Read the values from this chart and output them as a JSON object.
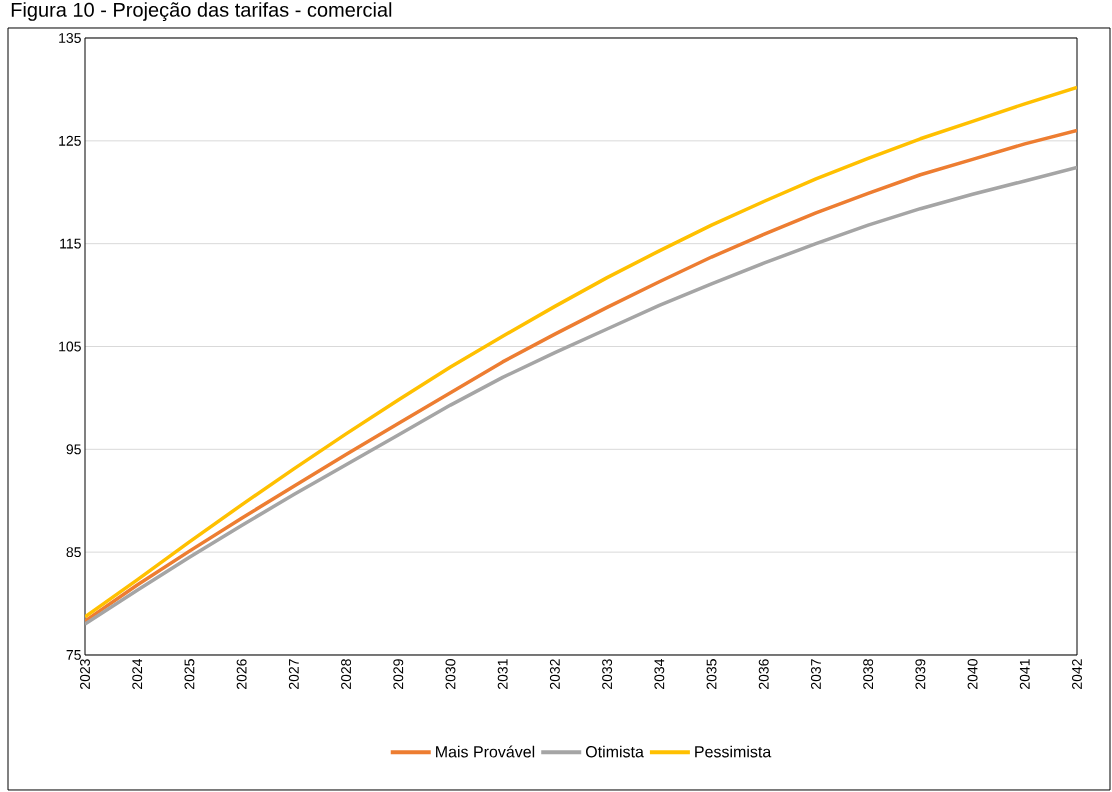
{
  "chart_data": {
    "type": "line",
    "title": "Figura 10 - Projeção das tarifas - comercial",
    "categories": [
      "2023",
      "2024",
      "2025",
      "2026",
      "2027",
      "2028",
      "2029",
      "2030",
      "2031",
      "2032",
      "2033",
      "2034",
      "2035",
      "2036",
      "2037",
      "2038",
      "2039",
      "2040",
      "2041",
      "2042"
    ],
    "series": [
      {
        "name": "Mais Provável",
        "color": "#ed7d31",
        "values": [
          78.3,
          81.8,
          85.1,
          88.3,
          91.4,
          94.5,
          97.5,
          100.5,
          103.5,
          106.2,
          108.8,
          111.3,
          113.7,
          115.9,
          118.0,
          119.9,
          121.7,
          123.2,
          124.7,
          126.0
        ]
      },
      {
        "name": "Otimista",
        "color": "#a5a5a5",
        "values": [
          78.0,
          81.3,
          84.5,
          87.6,
          90.6,
          93.5,
          96.4,
          99.3,
          102.0,
          104.4,
          106.7,
          109.0,
          111.1,
          113.1,
          115.0,
          116.8,
          118.4,
          119.8,
          121.1,
          122.4
        ]
      },
      {
        "name": "Pessimista",
        "color": "#ffc000",
        "values": [
          78.7,
          82.3,
          86.0,
          89.6,
          93.1,
          96.5,
          99.8,
          103.0,
          106.0,
          108.9,
          111.7,
          114.3,
          116.8,
          119.1,
          121.3,
          123.3,
          125.2,
          126.9,
          128.6,
          130.2
        ]
      }
    ],
    "ylim": [
      75,
      135
    ],
    "yticks": [
      75,
      85,
      95,
      105,
      115,
      125,
      135
    ],
    "grid": "y",
    "legend": "bottom"
  }
}
